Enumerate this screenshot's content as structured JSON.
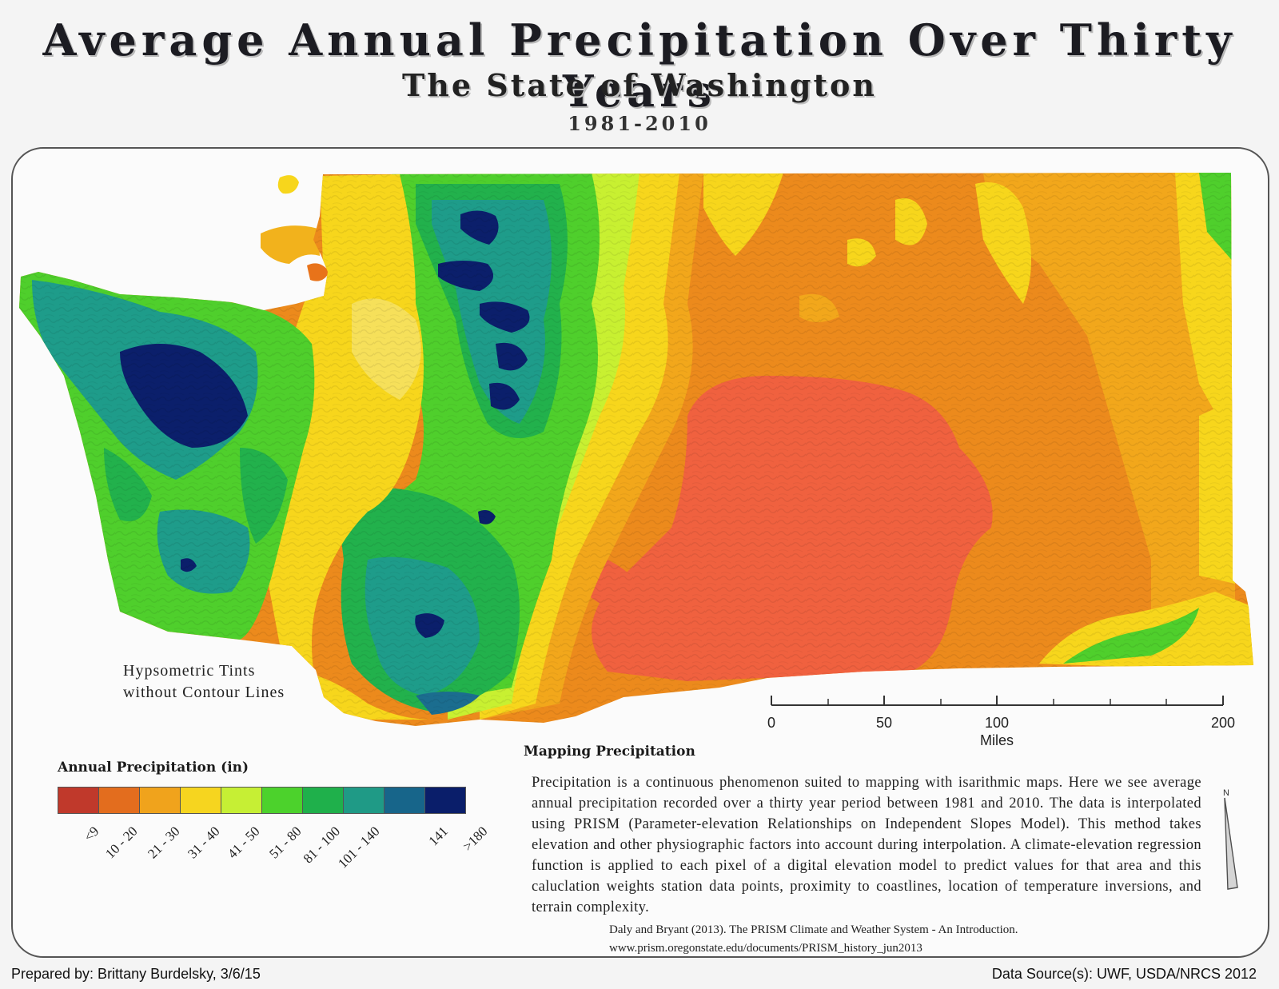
{
  "header": {
    "title": "Average Annual Precipitation Over Thirty Years",
    "subtitle": "The State of Washington",
    "years": "1981-2010"
  },
  "map": {
    "region": "Washington",
    "overlay_note_line1": "Hypsometric Tints",
    "overlay_note_line2": "without Contour Lines",
    "colors": {
      "<9": "#cc3d2c",
      "10-20": "#e8731a",
      "21-30": "#f2a71b",
      "31-40": "#f7d61c",
      "41-50": "#c8f031",
      "51-80": "#4fcf2c",
      "81-100": "#22b14c",
      "101-140": "#1e9c8a",
      "141": "#1b6d8f",
      ">180": "#0b1f6b",
      "dry_core": "#f0613f"
    }
  },
  "scale_bar": {
    "ticks": [
      "0",
      "50",
      "100",
      "200"
    ],
    "unit": "Miles"
  },
  "legend": {
    "title": "Annual Precipitation (in)",
    "items": [
      {
        "label": "<9",
        "color": "#c0392b"
      },
      {
        "label": "10 - 20",
        "color": "#e36d1e"
      },
      {
        "label": "21 - 30",
        "color": "#f0a31c"
      },
      {
        "label": "31 - 40",
        "color": "#f6d51f"
      },
      {
        "label": "41 - 50",
        "color": "#c6ef34"
      },
      {
        "label": "51 - 80",
        "color": "#4cd22c"
      },
      {
        "label": "81 - 100",
        "color": "#1fb04b"
      },
      {
        "label": "101 - 140",
        "color": "#1f9a86"
      },
      {
        "label": "141",
        "color": "#17658a"
      },
      {
        "label": ">180",
        "color": "#0a1e6a"
      }
    ]
  },
  "text_block": {
    "heading": "Mapping Precipitation",
    "body": "Precipitation is a continuous phenomenon suited to mapping with isarithmic maps. Here we see average annual precipitation recorded over a thirty year period between 1981 and 2010. The data is interpolated using PRISM (Parameter-elevation Relationships on Independent Slopes Model). This method takes elevation and other physiographic factors into account during interpolation. A climate-elevation regression function is applied to each pixel of a digital elevation model to predict values for that area and this caluclation weights station data points, proximity to coastlines, location of temperature inversions, and terrain complexity.",
    "citation_line1": "Daly and Bryant (2013).  The PRISM Climate and Weather System - An Introduction.",
    "citation_line2": "www.prism.oregonstate.edu/documents/PRISM_history_jun2013"
  },
  "north_arrow": {
    "label": "N"
  },
  "footer": {
    "prepared_by": "Prepared by: Brittany Burdelsky, 3/6/15",
    "data_source": "Data Source(s): UWF, USDA/NRCS 2012"
  }
}
